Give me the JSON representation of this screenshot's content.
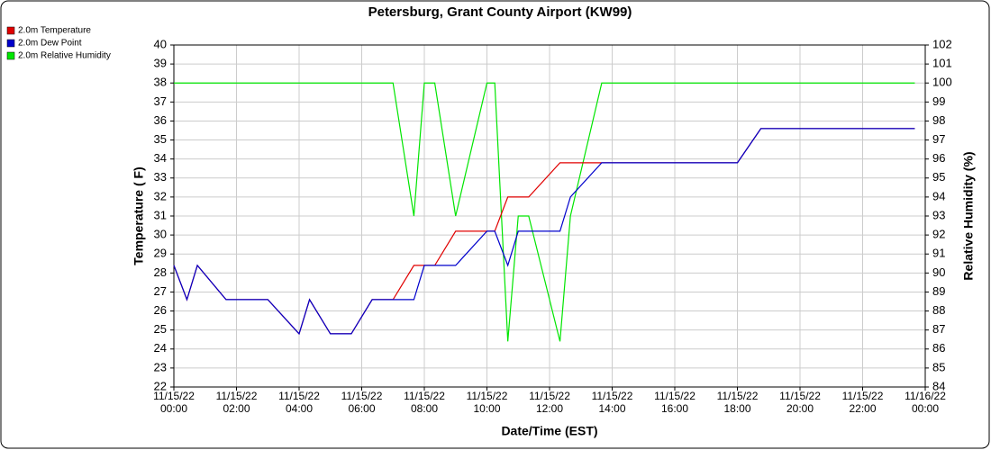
{
  "chart_data": {
    "type": "line",
    "title": "Petersburg, Grant County Airport (KW99)",
    "x_label": "Date/Time (EST)",
    "y_label": "Temperature ( F)",
    "y2_label": "Relative Humidity (%)",
    "x": [
      "2022-11-15T00:00",
      "2022-11-15T00:25",
      "2022-11-15T00:45",
      "2022-11-15T01:40",
      "2022-11-15T03:00",
      "2022-11-15T04:00",
      "2022-11-15T04:20",
      "2022-11-15T05:00",
      "2022-11-15T05:40",
      "2022-11-15T06:20",
      "2022-11-15T07:00",
      "2022-11-15T07:40",
      "2022-11-15T08:00",
      "2022-11-15T08:20",
      "2022-11-15T09:00",
      "2022-11-15T10:00",
      "2022-11-15T10:15",
      "2022-11-15T10:40",
      "2022-11-15T11:00",
      "2022-11-15T11:20",
      "2022-11-15T12:20",
      "2022-11-15T12:40",
      "2022-11-15T13:40",
      "2022-11-15T18:00",
      "2022-11-15T18:45",
      "2022-11-15T23:40"
    ],
    "series": [
      {
        "name": "2.0m Relative Humidity",
        "color": "#00e600",
        "axis": "y2",
        "values": [
          100,
          100,
          100,
          100,
          100,
          100,
          100,
          100,
          100,
          100,
          100,
          93,
          100,
          100,
          93,
          100,
          100,
          86.4,
          93,
          93,
          86.4,
          93,
          100,
          100,
          100,
          100
        ]
      },
      {
        "name": "2.0m Temperature",
        "color": "#e00000",
        "values": [
          28.4,
          26.6,
          28.4,
          26.6,
          26.6,
          24.8,
          26.6,
          24.8,
          24.8,
          26.6,
          26.6,
          28.4,
          28.4,
          28.4,
          30.2,
          30.2,
          30.2,
          32.0,
          32.0,
          32.0,
          33.8,
          33.8,
          33.8,
          33.8,
          35.6,
          35.6
        ]
      },
      {
        "name": "2.0m Dew Point",
        "color": "#0000cc",
        "values": [
          28.4,
          26.6,
          28.4,
          26.6,
          26.6,
          24.8,
          26.6,
          24.8,
          24.8,
          26.6,
          26.6,
          26.6,
          28.4,
          28.4,
          28.4,
          30.2,
          30.2,
          28.4,
          30.2,
          30.2,
          30.2,
          32.0,
          33.8,
          33.8,
          35.6,
          35.6
        ]
      }
    ],
    "legend_order": [
      1,
      2,
      0
    ],
    "xlim": [
      "2022-11-15T00:00",
      "2022-11-16T00:00"
    ],
    "xticks": [
      {
        "value": "2022-11-15T00:00",
        "label": "11/15/22\n00:00"
      },
      {
        "value": "2022-11-15T02:00",
        "label": "11/15/22\n02:00"
      },
      {
        "value": "2022-11-15T04:00",
        "label": "11/15/22\n04:00"
      },
      {
        "value": "2022-11-15T06:00",
        "label": "11/15/22\n06:00"
      },
      {
        "value": "2022-11-15T08:00",
        "label": "11/15/22\n08:00"
      },
      {
        "value": "2022-11-15T10:00",
        "label": "11/15/22\n10:00"
      },
      {
        "value": "2022-11-15T12:00",
        "label": "11/15/22\n12:00"
      },
      {
        "value": "2022-11-15T14:00",
        "label": "11/15/22\n14:00"
      },
      {
        "value": "2022-11-15T16:00",
        "label": "11/15/22\n16:00"
      },
      {
        "value": "2022-11-15T18:00",
        "label": "11/15/22\n18:00"
      },
      {
        "value": "2022-11-15T20:00",
        "label": "11/15/22\n20:00"
      },
      {
        "value": "2022-11-15T22:00",
        "label": "11/15/22\n22:00"
      },
      {
        "value": "2022-11-16T00:00",
        "label": "11/16/22\n00:00"
      }
    ],
    "ylim": [
      22,
      40
    ],
    "yticks": [
      22,
      23,
      24,
      25,
      26,
      27,
      28,
      29,
      30,
      31,
      32,
      33,
      34,
      35,
      36,
      37,
      38,
      39,
      40
    ],
    "y2lim": [
      84,
      102
    ],
    "y2ticks": [
      84,
      85,
      86,
      87,
      88,
      89,
      90,
      91,
      92,
      93,
      94,
      95,
      96,
      97,
      98,
      99,
      100,
      101,
      102
    ],
    "grid": true
  }
}
